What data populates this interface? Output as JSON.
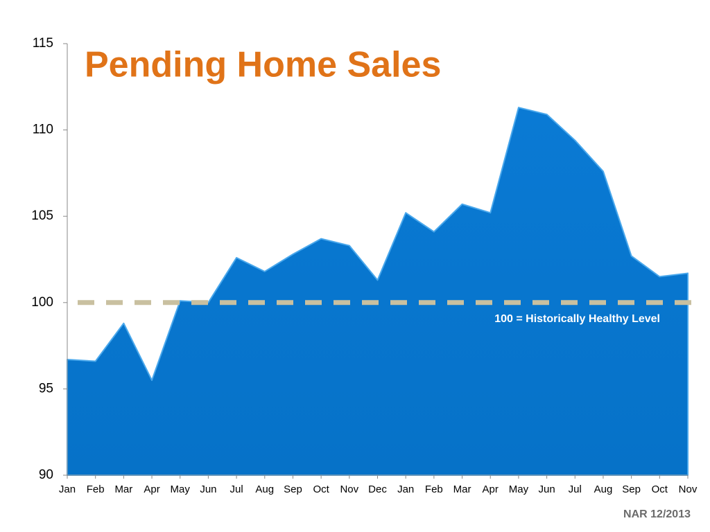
{
  "chart_data": {
    "type": "area",
    "title": "Pending Home Sales",
    "categories": [
      "Jan",
      "Feb",
      "Mar",
      "Apr",
      "May",
      "Jun",
      "Jul",
      "Aug",
      "Sep",
      "Oct",
      "Nov",
      "Dec",
      "Jan",
      "Feb",
      "Mar",
      "Apr",
      "May",
      "Jun",
      "Jul",
      "Aug",
      "Sep",
      "Oct",
      "Nov"
    ],
    "values": [
      96.7,
      96.6,
      98.8,
      95.5,
      100.1,
      100.0,
      102.6,
      101.8,
      102.8,
      103.7,
      103.3,
      101.3,
      105.2,
      104.1,
      105.7,
      105.2,
      111.3,
      110.9,
      109.4,
      107.6,
      102.7,
      101.5,
      101.7
    ],
    "color": "#0a78d0",
    "ylim": [
      90,
      115
    ],
    "yticks": [
      90,
      95,
      100,
      105,
      110,
      115
    ],
    "reference_line": 100,
    "reference_color": "#c9c0a0",
    "annotation": "100 = Historically Healthy Level",
    "source": "NAR 12/2013"
  }
}
